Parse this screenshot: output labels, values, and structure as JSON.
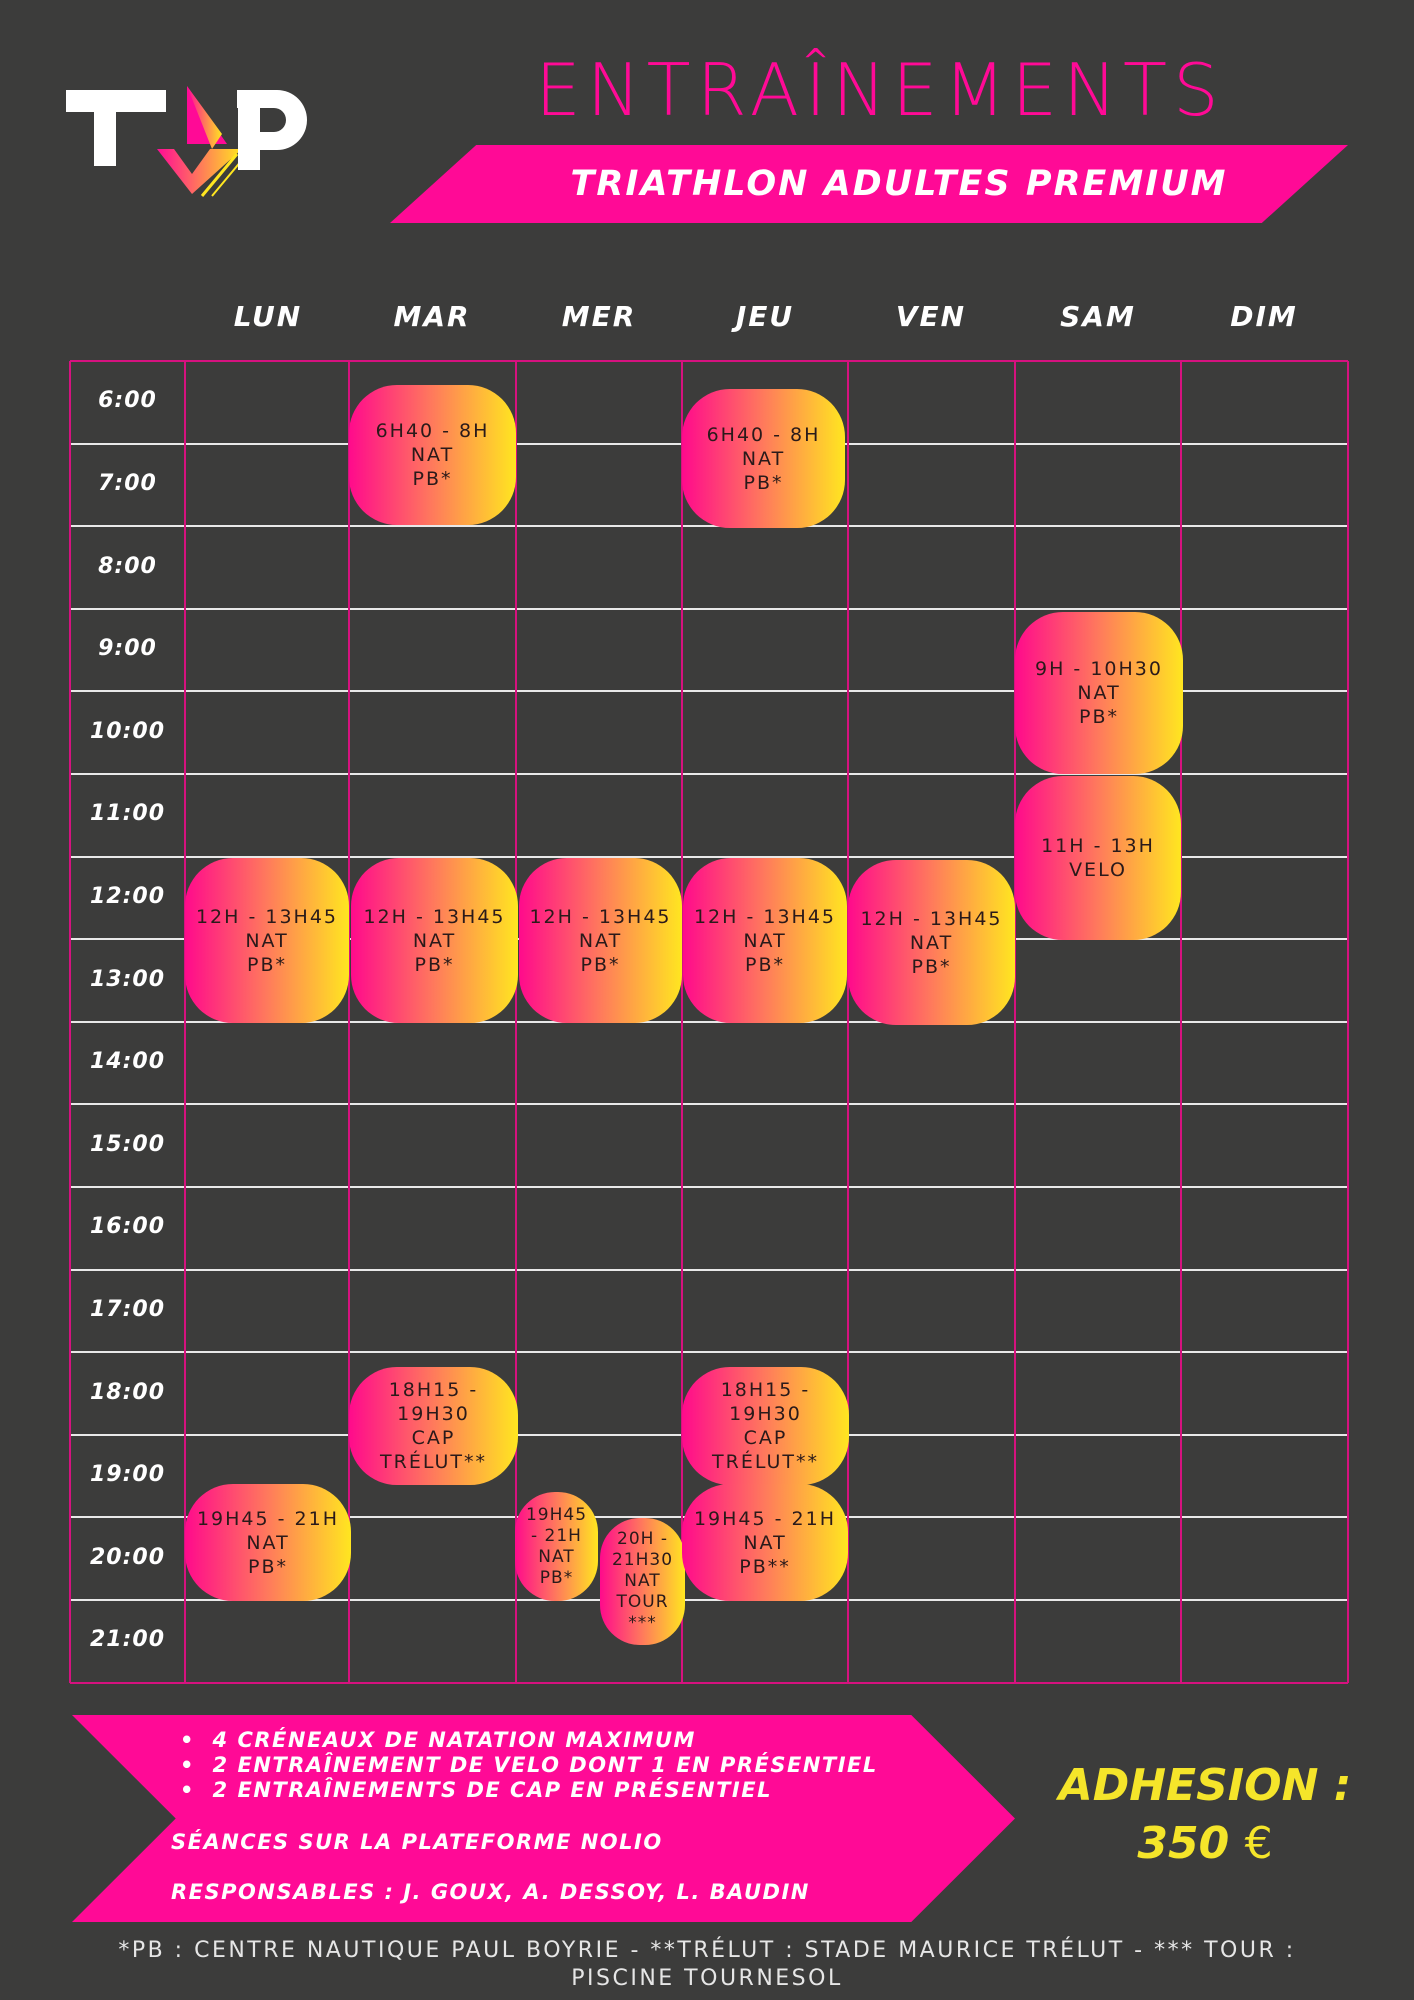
{
  "logo": {
    "text": "TAP"
  },
  "header": {
    "title": "ENTRAÎNEMENTS",
    "subtitle": "TRIATHLON ADULTES PREMIUM"
  },
  "days": [
    "LUN",
    "MAR",
    "MER",
    "JEU",
    "VEN",
    "SAM",
    "DIM"
  ],
  "times": [
    "6:00",
    "7:00",
    "8:00",
    "9:00",
    "10:00",
    "11:00",
    "12:00",
    "13:00",
    "14:00",
    "15:00",
    "16:00",
    "17:00",
    "18:00",
    "19:00",
    "20:00",
    "21:00"
  ],
  "events": [
    {
      "day": "MAR",
      "lines": [
        "6H40 - 8H",
        "NAT",
        "PB*"
      ]
    },
    {
      "day": "JEU",
      "lines": [
        "6H40 - 8H",
        "NAT",
        "PB*"
      ]
    },
    {
      "day": "SAM",
      "lines": [
        "9H - 10H30",
        "NAT",
        "PB*"
      ]
    },
    {
      "day": "SAM",
      "lines": [
        "11H - 13H",
        "VELO"
      ]
    },
    {
      "day": "LUN",
      "lines": [
        "12H - 13H45",
        "NAT",
        "PB*"
      ]
    },
    {
      "day": "MAR",
      "lines": [
        "12H - 13H45",
        "NAT",
        "PB*"
      ]
    },
    {
      "day": "MER",
      "lines": [
        "12H - 13H45",
        "NAT",
        "PB*"
      ]
    },
    {
      "day": "JEU",
      "lines": [
        "12H - 13H45",
        "NAT",
        "PB*"
      ]
    },
    {
      "day": "VEN",
      "lines": [
        "12H - 13H45",
        "NAT",
        "PB*"
      ]
    },
    {
      "day": "MAR",
      "lines": [
        "18H15 -",
        "19H30",
        "CAP",
        "TRÉLUT**"
      ]
    },
    {
      "day": "JEU",
      "lines": [
        "18H15 -",
        "19H30",
        "CAP",
        "TRÉLUT**"
      ]
    },
    {
      "day": "LUN",
      "lines": [
        "19H45 - 21H",
        "NAT",
        "PB*"
      ]
    },
    {
      "day": "MER",
      "lines": [
        "19H45",
        "- 21H",
        "NAT",
        "PB*"
      ]
    },
    {
      "day": "MER",
      "lines": [
        "20H -",
        "21H30",
        "NAT",
        "TOUR",
        "***"
      ]
    },
    {
      "day": "JEU",
      "lines": [
        "19H45 - 21H",
        "NAT",
        "PB**"
      ]
    }
  ],
  "info": {
    "bullets": [
      "4 CRÉNEAUX DE NATATION MAXIMUM",
      "2 ENTRAÎNEMENT DE VELO DONT 1 EN PRÉSENTIEL",
      "2 ENTRAÎNEMENTS DE CAP EN PRÉSENTIEL"
    ],
    "platform": "SÉANCES SUR LA PLATEFORME NOLIO",
    "managers": "RESPONSABLES : J. GOUX, A. DESSOY, L. BAUDIN"
  },
  "membership": {
    "label": "ADHESION :",
    "price": "350",
    "currency": "€"
  },
  "footer": {
    "line1": "*PB : CENTRE NAUTIQUE PAUL BOYRIE - **TRÉLUT : STADE MAURICE TRÉLUT - *** TOUR :",
    "line2": "PISCINE TOURNESOL"
  },
  "colors": {
    "background": "#3c3c3b",
    "accent": "#ff0a96",
    "yellow": "#f5e52a"
  }
}
